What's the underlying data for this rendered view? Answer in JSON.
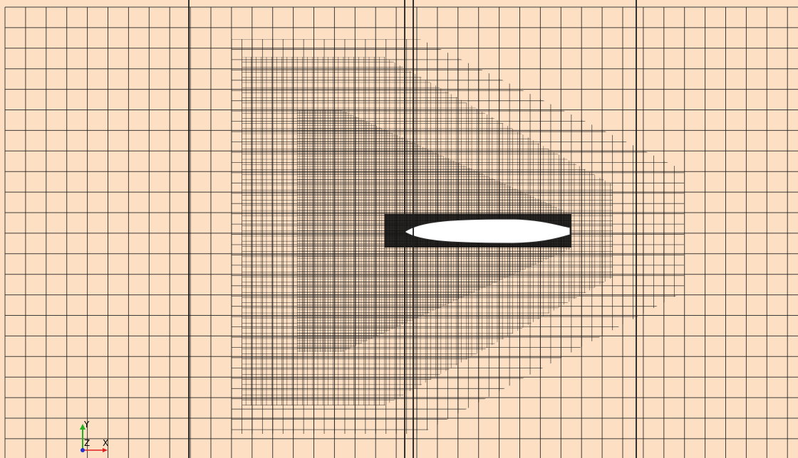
{
  "viewport": {
    "background_color": "#fde0c4",
    "mesh_line_color": "#1e1e1e",
    "body_fill_color": "#ffffff",
    "body_dense_mesh_color": "#111111"
  },
  "axes": {
    "y_label": "Y",
    "z_label": "Z",
    "x_label": "X",
    "x_axis_color": "#e02020",
    "y_axis_color": "#22b022",
    "z_axis_color": "#2233cc"
  }
}
